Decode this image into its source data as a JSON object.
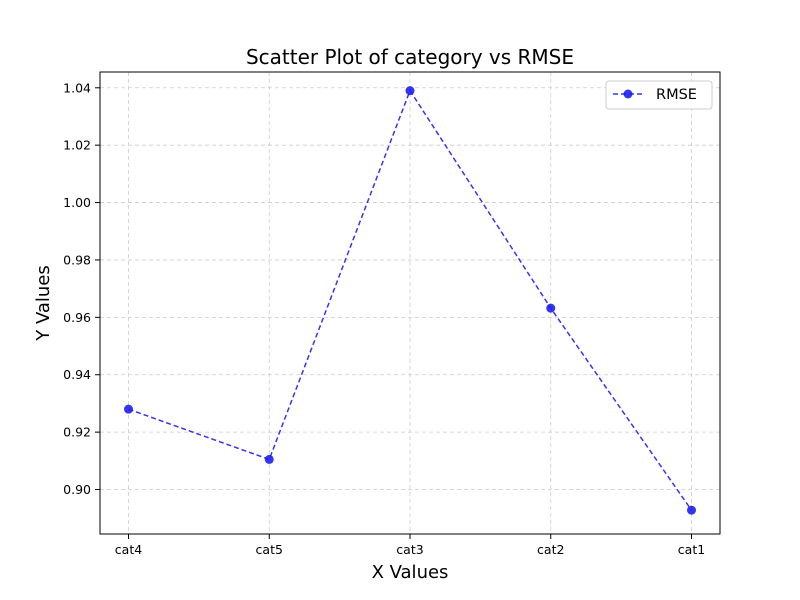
{
  "chart_data": {
    "type": "line",
    "title": "Scatter Plot of category vs RMSE",
    "xlabel": "X Values",
    "ylabel": "Y Values",
    "categories": [
      "cat4",
      "cat5",
      "cat3",
      "cat2",
      "cat1"
    ],
    "series": [
      {
        "name": "RMSE",
        "values": [
          0.928,
          0.9105,
          1.039,
          0.9632,
          0.8928
        ],
        "color": "#1f1ff0",
        "line_style": "dashed",
        "marker": "circle"
      }
    ],
    "ylim": [
      0.8845,
      1.0455
    ],
    "yticks": [
      0.9,
      0.92,
      0.94,
      0.96,
      0.98,
      1.0,
      1.02,
      1.04
    ],
    "ytick_labels": [
      "0.90",
      "0.92",
      "0.94",
      "0.96",
      "0.98",
      "1.00",
      "1.02",
      "1.04"
    ],
    "grid": true,
    "legend_position": "top-right"
  }
}
